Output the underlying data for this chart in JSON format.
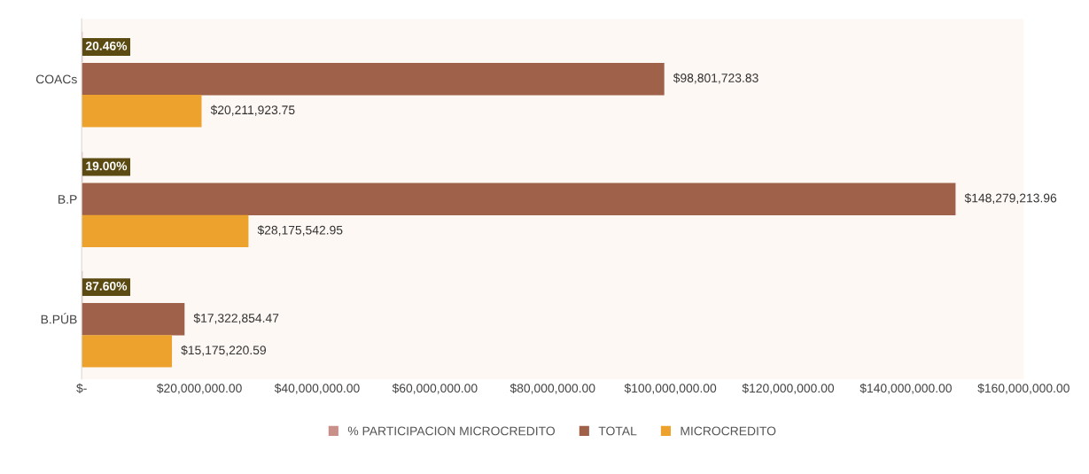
{
  "chart_data": {
    "type": "bar",
    "orientation": "horizontal",
    "categories": [
      "COACs",
      "B.P",
      "B.PÚB"
    ],
    "series": [
      {
        "name": "% PARTICIPACION MICROCREDITO",
        "color": "#c9908a",
        "values": [
          0.2046,
          0.19,
          0.876
        ],
        "value_labels": [
          "20.46%",
          "19.00%",
          "87.60%"
        ]
      },
      {
        "name": "TOTAL",
        "color": "#a0614a",
        "values": [
          98801723.83,
          148279213.96,
          17322854.47
        ],
        "value_labels": [
          "$98,801,723.83",
          "$148,279,213.96",
          "$17,322,854.47"
        ]
      },
      {
        "name": "MICROCREDITO",
        "color": "#eda22e",
        "values": [
          20211923.75,
          28175542.95,
          15175220.59
        ],
        "value_labels": [
          "$20,211,923.75",
          "$28,175,542.95",
          "$15,175,220.59"
        ]
      }
    ],
    "xlim": [
      0,
      160000000
    ],
    "xticks": [
      {
        "value": 0,
        "label": "$-"
      },
      {
        "value": 20000000,
        "label": "$20,000,000.00"
      },
      {
        "value": 40000000,
        "label": "$40,000,000.00"
      },
      {
        "value": 60000000,
        "label": "$60,000,000.00"
      },
      {
        "value": 80000000,
        "label": "$80,000,000.00"
      },
      {
        "value": 100000000,
        "label": "$100,000,000.00"
      },
      {
        "value": 120000000,
        "label": "$120,000,000.00"
      },
      {
        "value": 140000000,
        "label": "$140,000,000.00"
      },
      {
        "value": 160000000,
        "label": "$160,000,000.00"
      }
    ],
    "legend": "bottom"
  }
}
